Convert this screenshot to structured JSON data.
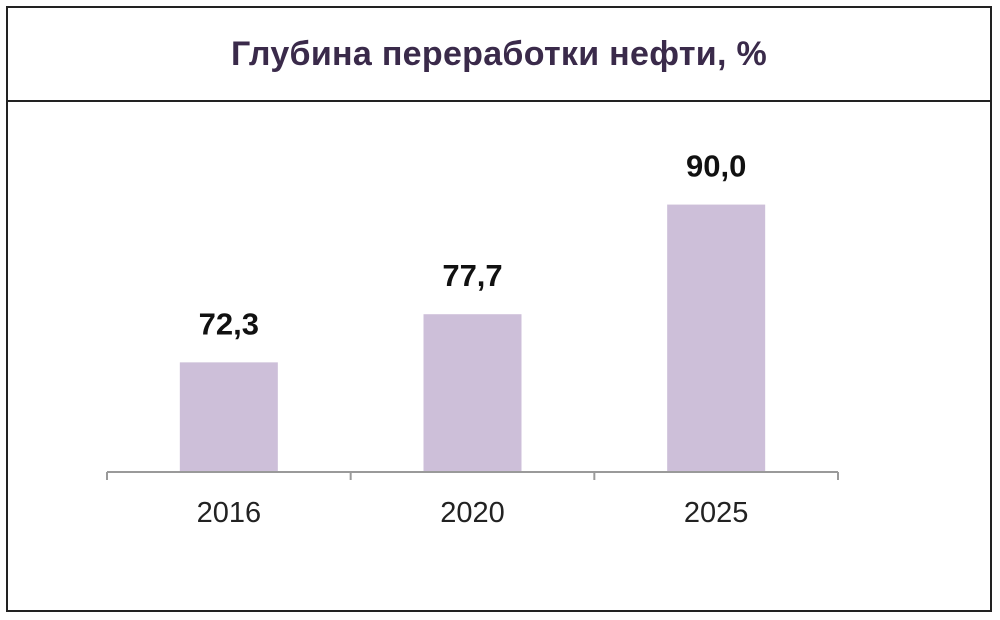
{
  "chart_data": {
    "type": "bar",
    "title": "Глубина переработки нефти, %",
    "categories": [
      "2016",
      "2020",
      "2025"
    ],
    "values": [
      72.3,
      77.7,
      90.0
    ],
    "value_labels": [
      "72,3",
      "77,7",
      "90,0"
    ],
    "xlabel": "",
    "ylabel": "",
    "ylim": [
      60,
      95
    ],
    "grid": false,
    "legend": "none",
    "bar_color": "#cdbfd9"
  }
}
